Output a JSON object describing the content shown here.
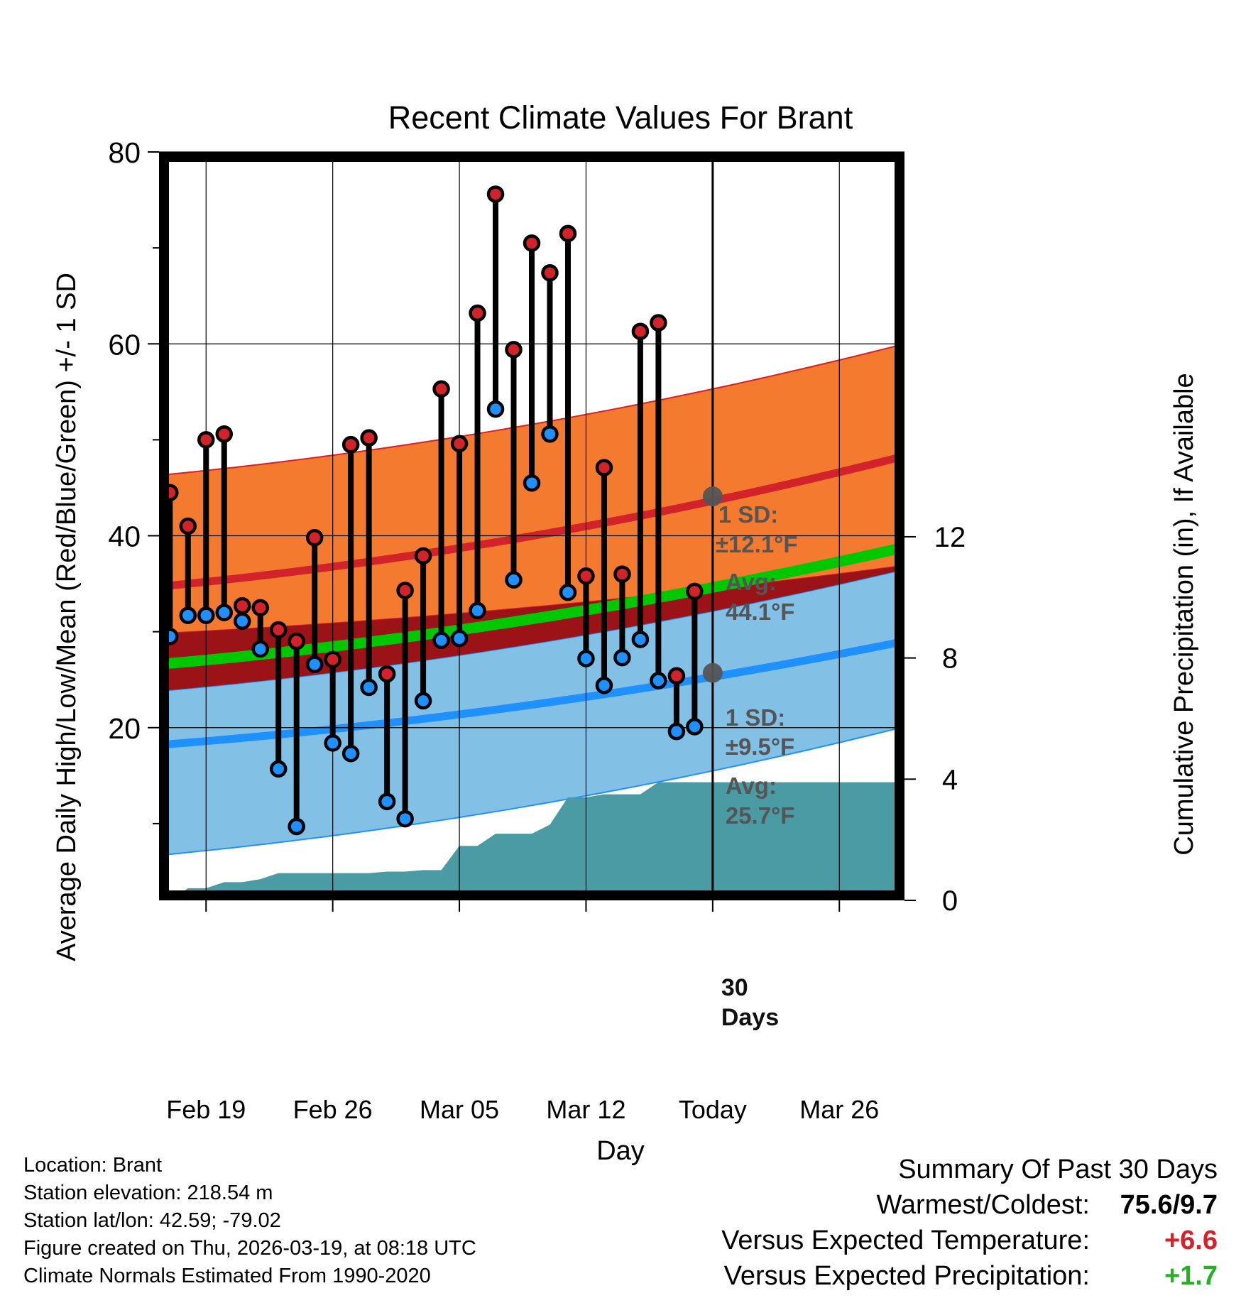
{
  "chart_data": {
    "type": "range-dot",
    "title": "Recent Climate Values For Brant",
    "xlabel": "Day",
    "ylabel_left": "Average Daily High/Low/Mean (Red/Blue/Green) +/- 1 SD",
    "ylabel_right": "Cumulative Precipitation (in), If Available",
    "x_ticks": [
      "Feb 19",
      "Feb 26",
      "Mar 05",
      "Mar 12",
      "Today",
      "Mar 26"
    ],
    "x_tick_days": [
      3,
      10,
      17,
      24,
      31,
      38
    ],
    "x_range_days": [
      0.4,
      41.6
    ],
    "y_left_ticks": [
      20,
      40,
      60,
      80
    ],
    "y_left_range": [
      2,
      80
    ],
    "y_right_ticks": [
      0,
      4,
      8,
      12
    ],
    "y_right_range": [
      0,
      24.7
    ],
    "today_day": 31,
    "daily_obs": {
      "days": [
        1,
        2,
        3,
        4,
        5,
        6,
        7,
        8,
        9,
        10,
        11,
        12,
        13,
        14,
        15,
        16,
        17,
        18,
        19,
        20,
        21,
        22,
        23,
        24,
        25,
        26,
        27,
        28,
        29,
        30
      ],
      "high": [
        44.5,
        41.0,
        50.0,
        50.6,
        32.7,
        32.5,
        30.2,
        29.0,
        39.8,
        27.1,
        49.5,
        50.2,
        25.6,
        34.3,
        37.9,
        55.3,
        49.6,
        63.2,
        75.6,
        59.4,
        70.5,
        67.4,
        71.5,
        35.8,
        47.1,
        36.0,
        61.3,
        62.2,
        25.4,
        34.2
      ],
      "low": [
        29.5,
        31.7,
        31.7,
        32.0,
        31.1,
        28.2,
        15.7,
        9.7,
        26.6,
        18.4,
        17.3,
        24.2,
        12.3,
        10.5,
        22.8,
        29.1,
        29.3,
        32.2,
        53.2,
        35.4,
        45.5,
        50.6,
        34.1,
        27.2,
        24.4,
        27.3,
        29.2,
        24.9,
        19.6,
        20.1
      ]
    },
    "normals": {
      "days": [
        0.4,
        41.6
      ],
      "high_mean": [
        34.7,
        48.3
      ],
      "high_upper": [
        46.3,
        60.0
      ],
      "high_lower": [
        29.8,
        36.9
      ],
      "mean": [
        26.6,
        38.8
      ],
      "low_mean": [
        18.2,
        29.0
      ],
      "low_upper": [
        23.8,
        36.5
      ],
      "low_lower": [
        6.7,
        20.1
      ]
    },
    "precip_cumulative": {
      "days": [
        1,
        2,
        3,
        4,
        5,
        6,
        7,
        8,
        9,
        10,
        11,
        12,
        13,
        14,
        15,
        16,
        17,
        18,
        19,
        20,
        21,
        22,
        23,
        24,
        25,
        26,
        27,
        28,
        29,
        30,
        31,
        41.6
      ],
      "values": [
        0.0,
        0.4,
        0.4,
        0.6,
        0.6,
        0.7,
        0.9,
        0.9,
        0.9,
        0.9,
        0.9,
        0.9,
        0.95,
        0.95,
        1.0,
        1.0,
        1.8,
        1.8,
        2.2,
        2.2,
        2.2,
        2.5,
        3.4,
        3.4,
        3.5,
        3.5,
        3.5,
        3.9,
        3.9,
        3.9,
        3.9,
        3.9
      ]
    },
    "annotations": {
      "high_sd": "1 SD:",
      "high_sd_value": "±12.1°F",
      "high_avg": "Avg:",
      "high_avg_value": "44.1°F",
      "low_sd": "1 SD:",
      "low_sd_value": "±9.5°F",
      "low_avg": "Avg:",
      "low_avg_value": "25.7°F",
      "days_label": "30",
      "days_label2": "Days"
    },
    "today_high_avg": 44.1,
    "today_low_avg": 25.7,
    "colors": {
      "high_band": "#f47a30",
      "high_line": "#d2222a",
      "low_band": "#82c0e6",
      "low_line": "#1e90ff",
      "mean_line": "#00c800",
      "overlap": "#9b1217",
      "precip": "#4a9ba3",
      "high_dot": "#d2222a",
      "low_dot": "#1e90ff",
      "annotation": "#555555"
    }
  },
  "meta": {
    "location": "Location: Brant",
    "elevation": "Station elevation: 218.54 m",
    "latlon": "Station lat/lon: 42.59; -79.02",
    "created": "Figure created on Thu, 2026-03-19, at 08:18 UTC",
    "normals": "Climate Normals Estimated From 1990-2020"
  },
  "summary": {
    "title": "Summary Of Past 30 Days",
    "warm_cold_label": "Warmest/Coldest:",
    "warm_cold_value": "75.6/9.7",
    "temp_label": "Versus Expected Temperature:",
    "temp_value": "+6.6",
    "temp_color": "#d2222a",
    "precip_label": "Versus Expected Precipitation:",
    "precip_value": "+1.7",
    "precip_color": "#22b222"
  }
}
